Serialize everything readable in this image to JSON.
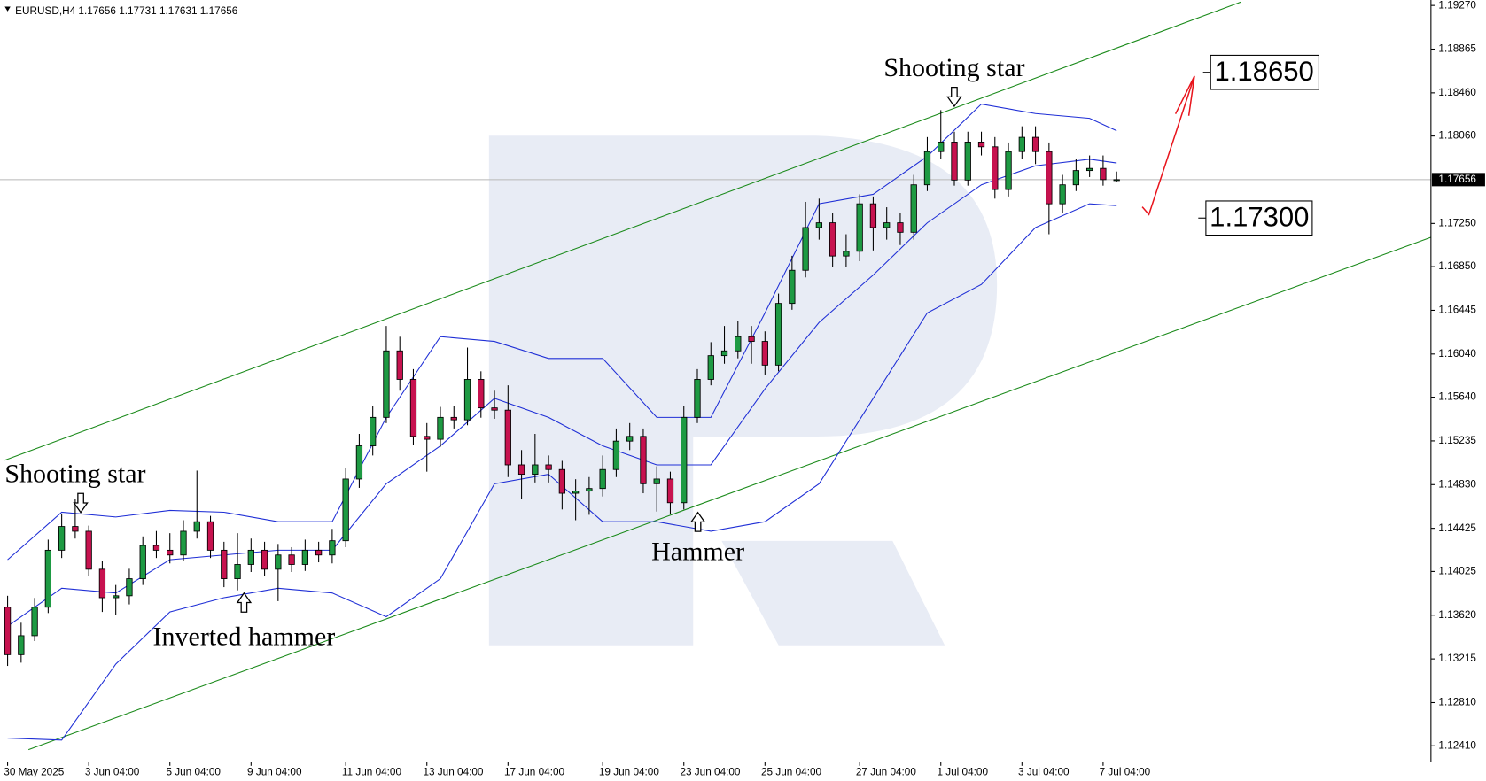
{
  "chart_data": {
    "type": "candlestick",
    "title": "EURUSD,H4  1.17656 1.17731 1.17631 1.17656",
    "categories": [
      "30 May 2025",
      null,
      null,
      null,
      null,
      null,
      "3 Jun 04:00",
      null,
      null,
      null,
      null,
      null,
      "5 Jun 04:00",
      null,
      null,
      null,
      null,
      null,
      "9 Jun 04:00",
      null,
      null,
      null,
      null,
      null,
      null,
      "11 Jun 04:00",
      null,
      null,
      null,
      null,
      null,
      "13 Jun 04:00",
      null,
      null,
      null,
      null,
      null,
      "17 Jun 04:00",
      null,
      null,
      null,
      null,
      null,
      null,
      "19 Jun 04:00",
      null,
      null,
      null,
      null,
      null,
      "23 Jun 04:00",
      null,
      null,
      null,
      null,
      null,
      "25 Jun 04:00",
      null,
      null,
      null,
      null,
      null,
      null,
      "27 Jun 04:00",
      null,
      null,
      null,
      null,
      null,
      "1 Jul 04:00",
      null,
      null,
      null,
      null,
      null,
      "3 Jul 04:00",
      null,
      null,
      null,
      null,
      null,
      "7 Jul 04:00",
      null
    ],
    "open": [
      1.13694,
      1.13254,
      1.1343,
      1.13694,
      1.14222,
      1.14442,
      1.14398,
      1.14046,
      1.13782,
      1.138,
      1.13958,
      1.14266,
      1.14222,
      1.14178,
      1.14398,
      1.14486,
      1.14222,
      1.13958,
      1.1409,
      1.14222,
      1.14046,
      1.14178,
      1.1409,
      1.14222,
      1.14178,
      1.1431,
      1.14882,
      1.15189,
      1.15453,
      1.16069,
      1.15805,
      1.15277,
      1.1525,
      1.15453,
      1.1543,
      1.15805,
      1.15541,
      1.1552,
      1.15013,
      1.14926,
      1.15013,
      1.1497,
      1.1475,
      1.1477,
      1.14794,
      1.1497,
      1.15233,
      1.15277,
      1.14838,
      1.14882,
      1.14662,
      1.15453,
      1.15805,
      1.16025,
      1.16069,
      1.16201,
      1.16157,
      1.15937,
      1.16509,
      1.16816,
      1.17212,
      1.17256,
      1.16948,
      1.16992,
      1.17432,
      1.17212,
      1.17256,
      1.17168,
      1.17608,
      1.17916,
      1.18004,
      1.17652,
      1.18004,
      1.1796,
      1.17564,
      1.17916,
      1.18048,
      1.17916,
      1.17432,
      1.17608,
      1.1774,
      1.1776,
      1.17656
    ],
    "high": [
      1.138,
      1.1355,
      1.1378,
      1.1432,
      1.1456,
      1.147,
      1.1445,
      1.1412,
      1.139,
      1.1405,
      1.1435,
      1.144,
      1.1438,
      1.145,
      1.1496,
      1.1454,
      1.143,
      1.1438,
      1.1433,
      1.143,
      1.1428,
      1.1425,
      1.1432,
      1.143,
      1.1442,
      1.1498,
      1.153,
      1.1556,
      1.163,
      1.162,
      1.159,
      1.154,
      1.1555,
      1.1556,
      1.161,
      1.1588,
      1.157,
      1.1575,
      1.1515,
      1.153,
      1.151,
      1.1505,
      1.1488,
      1.149,
      1.151,
      1.1535,
      1.154,
      1.1535,
      1.15,
      1.1495,
      1.1556,
      1.159,
      1.1615,
      1.163,
      1.1635,
      1.163,
      1.1625,
      1.166,
      1.1695,
      1.1745,
      1.1748,
      1.1735,
      1.1715,
      1.1752,
      1.175,
      1.174,
      1.1735,
      1.177,
      1.1805,
      1.183,
      1.181,
      1.181,
      1.181,
      1.1805,
      1.18,
      1.1815,
      1.1815,
      1.18,
      1.177,
      1.1785,
      1.1788,
      1.1788,
      1.17731
    ],
    "low": [
      1.1315,
      1.1318,
      1.1338,
      1.1364,
      1.1415,
      1.1433,
      1.1398,
      1.1365,
      1.1362,
      1.1372,
      1.139,
      1.1415,
      1.141,
      1.1412,
      1.1433,
      1.1415,
      1.1388,
      1.1385,
      1.1402,
      1.1398,
      1.1375,
      1.1402,
      1.1403,
      1.1411,
      1.141,
      1.1425,
      1.148,
      1.151,
      1.154,
      1.157,
      1.152,
      1.1495,
      1.1518,
      1.1535,
      1.1538,
      1.1545,
      1.1544,
      1.149,
      1.147,
      1.1485,
      1.1485,
      1.146,
      1.145,
      1.1455,
      1.1472,
      1.149,
      1.1515,
      1.1475,
      1.1458,
      1.1456,
      1.146,
      1.154,
      1.1575,
      1.1595,
      1.16,
      1.1595,
      1.1585,
      1.1588,
      1.1645,
      1.1675,
      1.171,
      1.1685,
      1.1685,
      1.169,
      1.17,
      1.171,
      1.1705,
      1.171,
      1.1755,
      1.1785,
      1.176,
      1.176,
      1.1788,
      1.1748,
      1.175,
      1.1785,
      1.178,
      1.1715,
      1.1735,
      1.1755,
      1.1768,
      1.176,
      1.17631
    ],
    "close": [
      1.13254,
      1.1343,
      1.13694,
      1.14222,
      1.14442,
      1.14398,
      1.14046,
      1.13782,
      1.138,
      1.13958,
      1.14266,
      1.14222,
      1.14178,
      1.14398,
      1.14486,
      1.14222,
      1.13958,
      1.1409,
      1.14222,
      1.14046,
      1.14178,
      1.1409,
      1.14222,
      1.14178,
      1.1431,
      1.14882,
      1.15189,
      1.15453,
      1.16069,
      1.15805,
      1.15277,
      1.1525,
      1.15453,
      1.1543,
      1.15805,
      1.15541,
      1.1552,
      1.15013,
      1.14926,
      1.15013,
      1.1497,
      1.1475,
      1.1477,
      1.14794,
      1.1497,
      1.15233,
      1.15277,
      1.14838,
      1.14882,
      1.14662,
      1.15453,
      1.15805,
      1.16025,
      1.16069,
      1.16201,
      1.16157,
      1.15937,
      1.16509,
      1.16816,
      1.17212,
      1.17256,
      1.16948,
      1.16992,
      1.17432,
      1.17212,
      1.17256,
      1.17168,
      1.17608,
      1.17916,
      1.18004,
      1.17652,
      1.18004,
      1.1796,
      1.17564,
      1.17916,
      1.18048,
      1.17916,
      1.17432,
      1.17608,
      1.1774,
      1.1776,
      1.17656,
      1.17656
    ],
    "up_color": "#1e9a43",
    "down_color": "#c7124f",
    "ylim": [
      1.1226,
      1.1932
    ],
    "yticks": [
      {
        "value": 1.1927,
        "label": "1.19270"
      },
      1.18865,
      {
        "value": 1.1846,
        "label": "1.18460"
      },
      {
        "value": 1.1806,
        "label": "1.18060"
      },
      {
        "value": 1.1725,
        "label": "1.17250"
      },
      {
        "value": 1.1685,
        "label": "1.16850"
      },
      1.16445,
      {
        "value": 1.1604,
        "label": "1.16040"
      },
      {
        "value": 1.1564,
        "label": "1.15640"
      },
      1.15235,
      {
        "value": 1.1483,
        "label": "1.14830"
      },
      1.14425,
      1.14025,
      {
        "value": 1.1362,
        "label": "1.13620"
      },
      1.13215,
      {
        "value": 1.1281,
        "label": "1.12810"
      },
      {
        "value": 1.1241,
        "label": "1.12410"
      }
    ],
    "last_price": 1.17656,
    "bands": {
      "color": "#1f2fd6",
      "x": [
        0,
        4,
        8,
        12,
        16,
        20,
        24,
        28,
        32,
        36,
        40,
        44,
        48,
        52,
        56,
        60,
        64,
        68,
        72,
        76,
        80,
        82
      ],
      "upper": [
        1.14134,
        1.14574,
        1.1453,
        1.14591,
        1.14574,
        1.14486,
        1.14486,
        1.15453,
        1.16201,
        1.16157,
        1.15999,
        1.15999,
        1.15453,
        1.15453,
        1.16421,
        1.17432,
        1.1752,
        1.17872,
        1.18356,
        1.18268,
        1.18224,
        1.18109
      ],
      "middle": [
        1.13518,
        1.1387,
        1.13826,
        1.14134,
        1.14178,
        1.14222,
        1.14222,
        1.14838,
        1.15189,
        1.15629,
        1.15453,
        1.15189,
        1.15013,
        1.15013,
        1.15717,
        1.16333,
        1.16772,
        1.17256,
        1.17608,
        1.17784,
        1.17845,
        1.1781
      ],
      "lower": [
        1.12481,
        1.12463,
        1.13167,
        1.1365,
        1.13782,
        1.1387,
        1.13826,
        1.13606,
        1.13958,
        1.14838,
        1.14926,
        1.14486,
        1.14486,
        1.14398,
        1.14486,
        1.14838,
        1.15629,
        1.16421,
        1.16685,
        1.17212,
        1.17432,
        1.17415
      ]
    },
    "annotations": [
      "Shooting star",
      "Inverted hammer",
      "Hammer",
      "Shooting star"
    ],
    "targets": [
      {
        "value": 1.1865,
        "label": "1.18650"
      },
      {
        "value": 1.173,
        "label": "1.17300"
      }
    ]
  }
}
